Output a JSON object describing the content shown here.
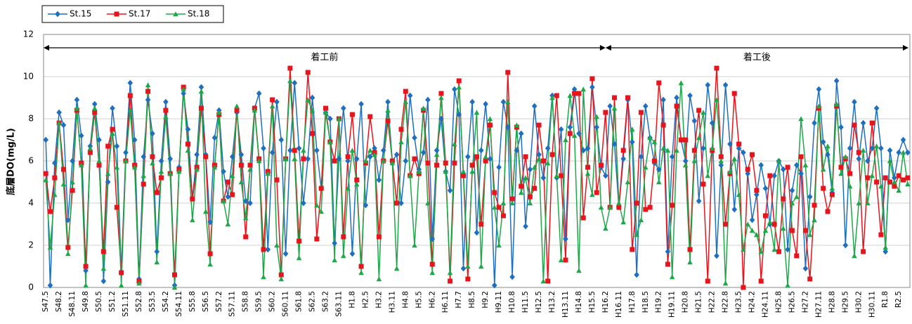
{
  "chart_data": {
    "type": "line",
    "y_label": "底層DO(mg/L)",
    "ylim": [
      0,
      12
    ],
    "yticks": [
      0,
      2,
      4,
      6,
      8,
      10,
      12
    ],
    "grid": true,
    "legend": "top-left",
    "periods": [
      {
        "label": "着工前",
        "start": "S47.5",
        "end": "H16.2"
      },
      {
        "label": "着工後",
        "start": "H16.2",
        "end": "R2.5"
      }
    ],
    "categories": [
      "S47.5",
      null,
      null,
      "S48.2",
      null,
      null,
      "S48.11",
      null,
      null,
      "S49.8",
      null,
      null,
      "S50.5",
      null,
      null,
      "S51.2",
      null,
      null,
      "S51.11",
      null,
      null,
      "S52.8",
      null,
      null,
      "S53.5",
      null,
      null,
      "S54.2",
      null,
      null,
      "S54.11",
      null,
      null,
      "S55.8",
      null,
      null,
      "S56.5",
      null,
      null,
      "S57.2",
      null,
      null,
      "S57.11",
      null,
      null,
      "S58.8",
      null,
      null,
      "S59.5",
      null,
      null,
      "S60.2",
      null,
      null,
      "S60.11",
      null,
      null,
      "S61.8",
      null,
      null,
      "S62.5",
      null,
      null,
      "S63.2",
      null,
      null,
      "S63.11",
      null,
      null,
      "H1.8",
      null,
      null,
      "H2.5",
      null,
      null,
      "H3.2",
      null,
      null,
      "H3.11",
      null,
      null,
      "H4.8",
      null,
      null,
      "H5.5",
      null,
      null,
      "H6.2",
      null,
      null,
      "H6.11",
      null,
      null,
      "H7.7",
      null,
      null,
      "H8.5",
      null,
      null,
      "H9.2",
      null,
      null,
      "H9.11",
      null,
      null,
      "H10.8",
      null,
      null,
      "H11.5",
      null,
      null,
      "H12.5",
      null,
      null,
      "H13.2",
      null,
      null,
      "H13.11",
      null,
      null,
      "H14.8",
      null,
      null,
      "H15.5",
      null,
      null,
      "H16.2",
      null,
      null,
      "H16.11",
      null,
      null,
      "H17.8",
      null,
      null,
      "H18.5",
      null,
      null,
      "H19.2",
      null,
      null,
      "H19.11",
      null,
      null,
      "H20.8",
      null,
      null,
      "H21.5",
      null,
      null,
      "H22.2",
      null,
      null,
      "H22.8",
      null,
      null,
      "H23.5",
      null,
      null,
      "H24.2",
      null,
      null,
      "H24.11",
      null,
      null,
      "H25.8",
      null,
      null,
      "H26.5",
      null,
      null,
      "H27.2",
      null,
      null,
      "H27.11",
      null,
      null,
      "H28.8",
      null,
      null,
      "H29.5",
      null,
      null,
      "H30.2",
      null,
      null,
      "H30.11",
      null,
      null,
      "R1.8",
      null,
      null,
      "R2.5",
      null,
      null
    ],
    "series": [
      {
        "name": "St.15",
        "color": "#1f6fc1",
        "marker": "diamond",
        "values": [
          7.0,
          0.1,
          5.9,
          8.3,
          7.7,
          3.2,
          6.0,
          8.9,
          7.2,
          0.8,
          6.7,
          8.7,
          7.0,
          0.3,
          5.0,
          8.5,
          6.7,
          0.7,
          6.4,
          9.7,
          7.0,
          0.4,
          6.2,
          8.9,
          7.3,
          1.7,
          6.0,
          8.8,
          6.1,
          0.1,
          5.7,
          9.2,
          7.5,
          4.2,
          6.3,
          9.5,
          6.3,
          3.1,
          7.1,
          8.4,
          5.5,
          4.3,
          6.2,
          8.3,
          6.3,
          4.1,
          4.0,
          8.5,
          9.2,
          6.6,
          1.8,
          6.4,
          8.8,
          7.0,
          1.6,
          6.5,
          9.7,
          6.6,
          4.0,
          6.1,
          9.0,
          6.5,
          4.7,
          8.3,
          8.0,
          2.1,
          6.1,
          8.5,
          6.0,
          1.6,
          6.1,
          8.7,
          3.9,
          6.2,
          6.6,
          5.1,
          6.5,
          8.8,
          6.0,
          6.3,
          4.0,
          6.0,
          9.1,
          7.1,
          5.6,
          6.4,
          8.9,
          2.3,
          6.5,
          8.0,
          5.5,
          4.6,
          9.4,
          8.2,
          0.9,
          6.2,
          8.8,
          2.6,
          6.5,
          8.7,
          6.1,
          0.1,
          5.7,
          8.8,
          7.6,
          0.5,
          6.5,
          7.3,
          2.9,
          5.6,
          8.6,
          6.3,
          5.2,
          6.6,
          9.1,
          5.2,
          7.5,
          2.3,
          7.6,
          9.4,
          7.3,
          6.5,
          6.6,
          9.5,
          7.6,
          5.7,
          5.3,
          8.6,
          6.8,
          3.8,
          6.1,
          8.9,
          6.9,
          0.6,
          6.2,
          8.6,
          7.1,
          5.9,
          5.6,
          8.9,
          1.7,
          6.2,
          9.0,
          7.0,
          6.0,
          9.1,
          7.9,
          4.1,
          6.6,
          9.6,
          7.8,
          1.5,
          5.8,
          9.6,
          6.8,
          3.7,
          6.6,
          6.4,
          5.4,
          3.2,
          4.4,
          5.8,
          4.7,
          3.0,
          5.3,
          6.0,
          5.6,
          1.8,
          4.6,
          5.8,
          5.4,
          0.9,
          4.3,
          7.8,
          9.4,
          6.9,
          6.3,
          4.5,
          9.8,
          7.6,
          2.0,
          6.6,
          8.8,
          6.1,
          7.8,
          6.0,
          6.6,
          8.5,
          6.6,
          1.7,
          6.5,
          5.2,
          6.4,
          7.0,
          6.4
        ]
      },
      {
        "name": "St.17",
        "color": "#e8141c",
        "marker": "square",
        "values": [
          5.4,
          3.6,
          5.2,
          7.8,
          5.6,
          1.9,
          4.6,
          8.4,
          5.9,
          1.0,
          6.4,
          8.3,
          5.8,
          1.7,
          6.7,
          7.5,
          3.8,
          0.7,
          6.0,
          9.1,
          5.8,
          0.3,
          4.9,
          9.3,
          6.2,
          4.5,
          5.2,
          8.4,
          5.4,
          0.6,
          5.6,
          9.5,
          6.8,
          4.2,
          5.7,
          8.5,
          6.2,
          1.6,
          5.8,
          8.2,
          4.1,
          5.0,
          4.4,
          8.4,
          5.8,
          2.4,
          5.8,
          8.5,
          6.1,
          1.8,
          5.5,
          8.9,
          5.1,
          0.6,
          6.1,
          10.4,
          6.5,
          2.2,
          6.1,
          10.2,
          7.3,
          2.3,
          4.7,
          8.5,
          6.9,
          6.0,
          8.0,
          2.4,
          6.2,
          8.2,
          5.1,
          1.0,
          5.9,
          8.1,
          6.4,
          2.4,
          6.0,
          7.9,
          6.0,
          4.0,
          7.5,
          9.3,
          5.3,
          6.1,
          5.4,
          8.4,
          5.9,
          1.1,
          5.8,
          9.2,
          5.9,
          0.3,
          5.9,
          9.8,
          5.3,
          0.4,
          5.8,
          6.2,
          3.0,
          6.0,
          7.7,
          4.5,
          3.8,
          3.4,
          10.2,
          4.2,
          7.6,
          4.8,
          6.2,
          4.3,
          4.7,
          7.7,
          6.0,
          0.3,
          6.3,
          9.1,
          5.3,
          1.3,
          7.3,
          9.2,
          9.2,
          3.3,
          5.7,
          9.9,
          4.5,
          5.8,
          8.3,
          3.8,
          9.0,
          3.8,
          6.5,
          9.0,
          1.8,
          4.0,
          8.3,
          3.7,
          3.8,
          6.0,
          9.7,
          7.7,
          1.1,
          3.9,
          8.6,
          7.0,
          7.0,
          1.8,
          6.5,
          8.4,
          4.9,
          0.3,
          6.5,
          10.4,
          6.2,
          3.0,
          5.4,
          9.2,
          6.8,
          0.0,
          5.6,
          6.3,
          4.6,
          0.3,
          3.4,
          5.3,
          3.0,
          1.7,
          4.2,
          5.7,
          2.7,
          1.5,
          6.2,
          2.7,
          0.4,
          3.9,
          8.5,
          4.7,
          3.6,
          4.4,
          8.6,
          5.7,
          6.1,
          5.4,
          7.7,
          6.4,
          1.7,
          5.2,
          7.8,
          5.0,
          2.5,
          5.2,
          5.0,
          4.8,
          5.3,
          5.1,
          5.2
        ]
      },
      {
        "name": "St.18",
        "color": "#1fa84a",
        "marker": "triangle",
        "values": [
          5.1,
          1.9,
          4.4,
          7.8,
          4.9,
          1.6,
          5.0,
          8.5,
          5.8,
          0.1,
          6.6,
          8.5,
          6.0,
          0.9,
          5.4,
          7.3,
          5.7,
          0.1,
          6.0,
          8.4,
          5.7,
          0.2,
          5.3,
          9.6,
          5.9,
          1.2,
          5.5,
          8.1,
          5.4,
          0.0,
          5.5,
          9.4,
          6.5,
          3.2,
          5.6,
          9.3,
          3.6,
          1.1,
          5.7,
          8.3,
          4.1,
          3.0,
          5.3,
          8.6,
          5.0,
          3.3,
          5.6,
          8.4,
          6.0,
          0.5,
          5.4,
          8.6,
          2.0,
          0.4,
          6.1,
          9.8,
          6.1,
          1.4,
          6.5,
          8.9,
          8.4,
          3.9,
          3.6,
          8.3,
          6.9,
          1.3,
          8.0,
          1.5,
          4.7,
          6.5,
          4.9,
          0.7,
          6.0,
          6.5,
          6.3,
          0.4,
          6.0,
          8.4,
          5.9,
          0.9,
          6.9,
          8.8,
          5.3,
          2.0,
          5.5,
          8.5,
          4.0,
          0.7,
          6.3,
          9.0,
          5.5,
          0.7,
          6.8,
          9.5,
          5.5,
          1.0,
          5.5,
          8.3,
          1.0,
          6.2,
          8.0,
          3.8,
          2.0,
          4.0,
          8.8,
          4.0,
          7.7,
          4.5,
          5.2,
          4.0,
          5.7,
          6.1,
          0.3,
          5.9,
          9.0,
          5.3,
          1.3,
          7.0,
          9.1,
          7.2,
          0.8,
          9.4,
          5.4,
          4.4,
          8.1,
          3.8,
          2.8,
          3.8,
          8.5,
          4.0,
          3.1,
          5.0,
          7.5,
          2.5,
          3.2,
          5.7,
          7.1,
          6.9,
          5.0,
          6.6,
          6.5,
          0.5,
          6.5,
          9.7,
          5.8,
          1.2,
          6.0,
          7.1,
          8.3,
          5.3,
          6.6,
          8.9,
          6.0,
          0.2,
          5.5,
          6.1,
          4.4,
          1.8,
          3.0,
          2.7,
          2.5,
          1.7,
          2.7,
          3.1,
          1.8,
          6.0,
          2.8,
          0.1,
          4.0,
          4.3,
          8.0,
          5.8,
          2.5,
          3.2,
          8.6,
          5.6,
          6.7,
          4.7,
          8.7,
          5.4,
          6.2,
          4.8,
          1.5,
          4.0,
          6.5,
          4.0,
          5.3,
          6.7,
          4.8,
          1.9,
          6.0,
          5.0,
          4.6,
          6.4,
          4.9
        ]
      }
    ]
  }
}
